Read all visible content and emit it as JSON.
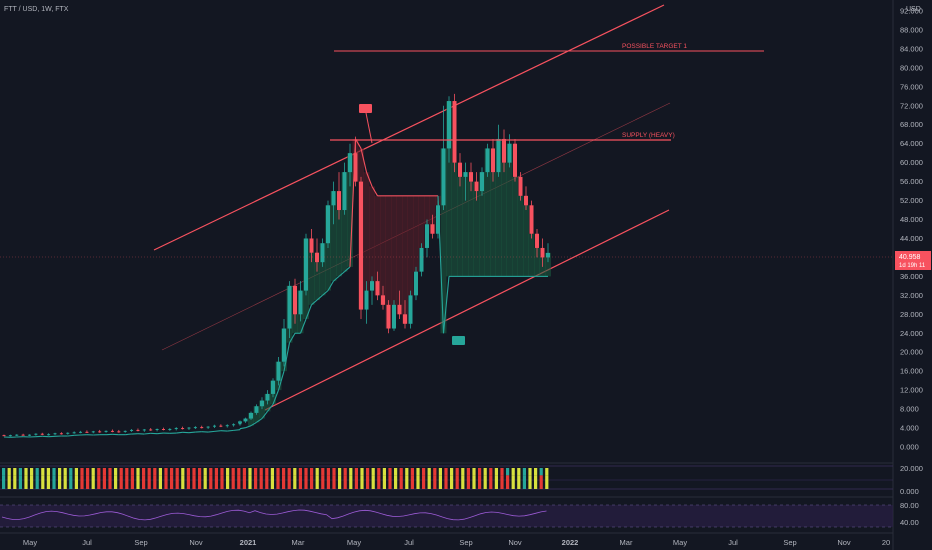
{
  "header": {
    "symbol": "FTT / USD, 1W, FTX",
    "currency": "USD"
  },
  "chart_data": {
    "type": "candlestick",
    "symbol": "FTT / USD",
    "interval": "1W",
    "exchange": "FTX",
    "currency": "USD",
    "ylim": [
      0,
      93
    ],
    "y_ticks": [
      "92.000",
      "88.000",
      "84.000",
      "80.000",
      "76.000",
      "72.000",
      "68.000",
      "64.000",
      "60.000",
      "56.000",
      "52.000",
      "48.000",
      "44.000",
      "40.000",
      "36.000",
      "32.000",
      "28.000",
      "24.000",
      "20.000",
      "16.000",
      "12.000",
      "8.000",
      "4.000",
      "0.000"
    ],
    "x_ticks": [
      "May",
      "Jul",
      "Sep",
      "Nov",
      "2021",
      "Mar",
      "May",
      "Jul",
      "Sep",
      "Nov",
      "2022",
      "Mar",
      "May",
      "Jul",
      "Sep",
      "Nov",
      "20"
    ],
    "price_label": {
      "value": "40.958",
      "countdown": "1d 19h 11"
    },
    "annotations": [
      {
        "text": "POSSIBLE TARGET 1",
        "price": 85
      },
      {
        "text": "SUPPLY (HEAVY)",
        "price": 66
      }
    ],
    "indicator_ticks": [
      "20.000",
      "0.000"
    ],
    "rsi_ticks": [
      "80.00",
      "40.00"
    ],
    "candles": [
      [
        2.5,
        2.6,
        2.3,
        2.4
      ],
      [
        2.4,
        2.6,
        2.2,
        2.5
      ],
      [
        2.5,
        2.7,
        2.3,
        2.6
      ],
      [
        2.6,
        2.8,
        2.4,
        2.5
      ],
      [
        2.5,
        2.7,
        2.3,
        2.6
      ],
      [
        2.6,
        2.9,
        2.4,
        2.8
      ],
      [
        2.8,
        3.0,
        2.5,
        2.6
      ],
      [
        2.6,
        2.9,
        2.4,
        2.7
      ],
      [
        2.7,
        3.0,
        2.5,
        2.9
      ],
      [
        2.9,
        3.1,
        2.6,
        2.8
      ],
      [
        2.8,
        3.1,
        2.6,
        3.0
      ],
      [
        3.0,
        3.3,
        2.8,
        3.1
      ],
      [
        3.1,
        3.4,
        2.9,
        3.2
      ],
      [
        3.2,
        3.5,
        3.0,
        3.1
      ],
      [
        3.1,
        3.4,
        2.9,
        3.3
      ],
      [
        3.3,
        3.6,
        3.0,
        3.2
      ],
      [
        3.2,
        3.5,
        3.0,
        3.4
      ],
      [
        3.4,
        3.7,
        3.1,
        3.3
      ],
      [
        3.3,
        3.6,
        3.0,
        3.2
      ],
      [
        3.2,
        3.5,
        3.0,
        3.4
      ],
      [
        3.4,
        3.8,
        3.2,
        3.6
      ],
      [
        3.6,
        3.9,
        3.3,
        3.5
      ],
      [
        3.5,
        3.8,
        3.2,
        3.7
      ],
      [
        3.7,
        4.0,
        3.4,
        3.6
      ],
      [
        3.6,
        3.9,
        3.3,
        3.8
      ],
      [
        3.8,
        4.1,
        3.5,
        3.7
      ],
      [
        3.7,
        4.0,
        3.4,
        3.8
      ],
      [
        3.8,
        4.2,
        3.5,
        4.0
      ],
      [
        4.0,
        4.3,
        3.7,
        3.9
      ],
      [
        3.9,
        4.2,
        3.6,
        4.1
      ],
      [
        4.1,
        4.4,
        3.8,
        4.2
      ],
      [
        4.2,
        4.5,
        3.9,
        4.1
      ],
      [
        4.1,
        4.4,
        3.8,
        4.3
      ],
      [
        4.3,
        4.7,
        4.0,
        4.5
      ],
      [
        4.5,
        4.8,
        4.2,
        4.4
      ],
      [
        4.4,
        4.8,
        4.1,
        4.6
      ],
      [
        4.6,
        5.0,
        4.3,
        4.8
      ],
      [
        4.8,
        5.3,
        4.5,
        5.1
      ],
      [
        5.1,
        5.6,
        4.8,
        5.4
      ],
      [
        5.4,
        6.2,
        5.1,
        6.0
      ],
      [
        6.0,
        7.5,
        5.7,
        7.2
      ],
      [
        7.2,
        9.0,
        6.8,
        8.6
      ],
      [
        8.6,
        10.5,
        8.0,
        9.8
      ],
      [
        9.8,
        12.0,
        9.0,
        11.2
      ],
      [
        11.2,
        14.5,
        10.5,
        14.0
      ],
      [
        14.0,
        19.0,
        13.0,
        18.0
      ],
      [
        18.0,
        27.0,
        17.0,
        25.0
      ],
      [
        25.0,
        35.0,
        23.0,
        34.0
      ],
      [
        34.0,
        35.5,
        26.0,
        28.0
      ],
      [
        28.0,
        35.0,
        26.5,
        33.0
      ],
      [
        33.0,
        45.0,
        32.0,
        44.0
      ],
      [
        44.0,
        46.0,
        39.0,
        41.0
      ],
      [
        41.0,
        44.0,
        37.0,
        39.0
      ],
      [
        39.0,
        44.0,
        38.0,
        43.0
      ],
      [
        43.0,
        52.0,
        42.0,
        51.0
      ],
      [
        51.0,
        56.0,
        47.0,
        54.0
      ],
      [
        54.0,
        58.0,
        48.0,
        50.0
      ],
      [
        50.0,
        60.0,
        49.0,
        58.0
      ],
      [
        58.0,
        64.0,
        55.0,
        62.0
      ],
      [
        62.0,
        65.5,
        55.0,
        56.0
      ],
      [
        56.0,
        57.0,
        27.0,
        29.0
      ],
      [
        29.0,
        35.0,
        26.0,
        33.0
      ],
      [
        33.0,
        36.0,
        30.0,
        35.0
      ],
      [
        35.0,
        37.0,
        31.0,
        32.0
      ],
      [
        32.0,
        34.0,
        29.0,
        30.0
      ],
      [
        30.0,
        31.0,
        24.0,
        25.0
      ],
      [
        25.0,
        31.0,
        24.5,
        30.0
      ],
      [
        30.0,
        33.0,
        27.0,
        28.0
      ],
      [
        28.0,
        31.0,
        25.0,
        26.0
      ],
      [
        26.0,
        33.0,
        25.0,
        32.0
      ],
      [
        32.0,
        38.0,
        31.0,
        37.0
      ],
      [
        37.0,
        43.0,
        36.0,
        42.0
      ],
      [
        42.0,
        48.0,
        40.0,
        47.0
      ],
      [
        47.0,
        49.0,
        44.0,
        45.0
      ],
      [
        45.0,
        52.0,
        44.0,
        51.0
      ],
      [
        51.0,
        72.0,
        50.0,
        63.0
      ],
      [
        63.0,
        74.0,
        60.0,
        73.0
      ],
      [
        73.0,
        74.5,
        58.0,
        60.0
      ],
      [
        60.0,
        62.0,
        55.0,
        57.0
      ],
      [
        57.0,
        60.0,
        52.0,
        58.0
      ],
      [
        58.0,
        60.0,
        54.0,
        56.0
      ],
      [
        56.0,
        58.0,
        52.0,
        54.0
      ],
      [
        54.0,
        59.0,
        53.0,
        58.0
      ],
      [
        58.0,
        64.0,
        57.0,
        63.0
      ],
      [
        63.0,
        65.0,
        56.0,
        58.0
      ],
      [
        58.0,
        68.0,
        57.0,
        65.0
      ],
      [
        65.0,
        67.0,
        58.0,
        60.0
      ],
      [
        60.0,
        66.0,
        59.0,
        64.0
      ],
      [
        64.0,
        65.0,
        56.0,
        57.0
      ],
      [
        57.0,
        58.0,
        52.0,
        53.0
      ],
      [
        53.0,
        55.0,
        50.0,
        51.0
      ],
      [
        51.0,
        52.0,
        44.0,
        45.0
      ],
      [
        45.0,
        46.0,
        40.0,
        42.0
      ],
      [
        42.0,
        44.0,
        38.0,
        40.0
      ],
      [
        40.0,
        43.0,
        39.0,
        40.96
      ]
    ]
  }
}
